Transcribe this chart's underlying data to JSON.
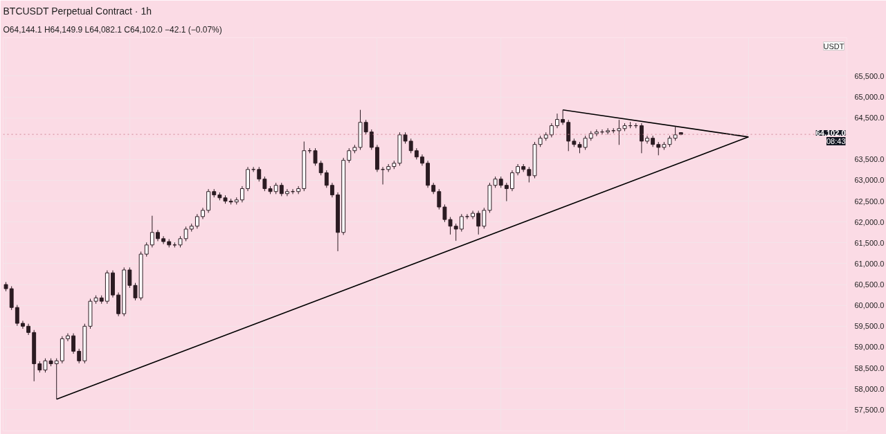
{
  "chart_data": {
    "type": "candlestick",
    "title": "BTCUSDT Perpetual Contract · 1h",
    "subtitle": "O64,144.1 H64,149.9 L64,082.1 C64,102.0 −42.1 (−0.07%)",
    "color": "#2b1b22",
    "categories": [
      null,
      null,
      null,
      null,
      null,
      null,
      null,
      null,
      null,
      null,
      null,
      null,
      null,
      null,
      null,
      null,
      null,
      null,
      null,
      null,
      null,
      null,
      null,
      null,
      null,
      null,
      null,
      null,
      null,
      null,
      null,
      null,
      null,
      null,
      null,
      null,
      null,
      null,
      null,
      null,
      null,
      null,
      null,
      null,
      null,
      null,
      null,
      null,
      null,
      null,
      null,
      null,
      null,
      null,
      null,
      null,
      null,
      null,
      null,
      null,
      null,
      null,
      null,
      null,
      null,
      null,
      null,
      null,
      null,
      null,
      null,
      null,
      null,
      null,
      null,
      null,
      null,
      null,
      null,
      null,
      null,
      null,
      null,
      null,
      null,
      null,
      null,
      null,
      null,
      null,
      null,
      null,
      null,
      null,
      null,
      null,
      null,
      null,
      null,
      null,
      null,
      null,
      null,
      null,
      null,
      null,
      null,
      null,
      null,
      null,
      null,
      null,
      null,
      null,
      null,
      null,
      null,
      null,
      null,
      null,
      null,
      null,
      null,
      null,
      null,
      null,
      null,
      null,
      null,
      null,
      null,
      null,
      null,
      null,
      null,
      null,
      null,
      null,
      null,
      null,
      null,
      null,
      null,
      null,
      null,
      null,
      null,
      null,
      null,
      null
    ],
    "ohlc": [
      [
        60500,
        60560,
        60340,
        60400
      ],
      [
        60400,
        60460,
        59890,
        59950
      ],
      [
        59950,
        60010,
        59510,
        59570
      ],
      [
        59570,
        59630,
        59440,
        59500
      ],
      [
        59500,
        59560,
        59290,
        59350
      ],
      [
        59350,
        59410,
        58180,
        58600
      ],
      [
        58600,
        58660,
        58390,
        58450
      ],
      [
        58450,
        58730,
        58390,
        58670
      ],
      [
        58670,
        58730,
        58540,
        58600
      ],
      [
        58600,
        58730,
        57750,
        58670
      ],
      [
        58670,
        59260,
        58610,
        59200
      ],
      [
        59200,
        59330,
        59140,
        59270
      ],
      [
        59270,
        59330,
        58840,
        58900
      ],
      [
        58900,
        58960,
        58610,
        58670
      ],
      [
        58670,
        59560,
        58610,
        59500
      ],
      [
        59500,
        60160,
        59440,
        60100
      ],
      [
        60100,
        60240,
        60040,
        60180
      ],
      [
        60180,
        60240,
        60040,
        60100
      ],
      [
        60100,
        60840,
        60040,
        60780
      ],
      [
        60780,
        60840,
        60190,
        60250
      ],
      [
        60250,
        60310,
        59740,
        59800
      ],
      [
        59800,
        60910,
        59740,
        60850
      ],
      [
        60850,
        60910,
        60420,
        60480
      ],
      [
        60480,
        60540,
        60120,
        60180
      ],
      [
        60180,
        61290,
        60120,
        61230
      ],
      [
        61230,
        61510,
        61170,
        61450
      ],
      [
        61450,
        62150,
        61390,
        61750
      ],
      [
        61750,
        61810,
        61540,
        61600
      ],
      [
        61600,
        61660,
        61470,
        61530
      ],
      [
        61530,
        61590,
        61390,
        61450
      ],
      [
        61450,
        61510,
        61390,
        61450
      ],
      [
        61450,
        61660,
        61390,
        61600
      ],
      [
        61600,
        61890,
        61540,
        61830
      ],
      [
        61830,
        61960,
        61770,
        61900
      ],
      [
        61900,
        62190,
        61840,
        62130
      ],
      [
        62130,
        62340,
        62070,
        62280
      ],
      [
        62280,
        62790,
        62220,
        62730
      ],
      [
        62730,
        62790,
        62590,
        62650
      ],
      [
        62650,
        62710,
        62520,
        62580
      ],
      [
        62580,
        62640,
        62440,
        62500
      ],
      [
        62500,
        62560,
        62420,
        62480
      ],
      [
        62480,
        62590,
        62420,
        62530
      ],
      [
        62530,
        62860,
        62470,
        62800
      ],
      [
        62800,
        63320,
        62740,
        63260
      ],
      [
        63260,
        63320,
        63200,
        63260
      ],
      [
        63260,
        63320,
        62970,
        63030
      ],
      [
        63030,
        63090,
        62740,
        62800
      ],
      [
        62800,
        62860,
        62670,
        62730
      ],
      [
        62730,
        62940,
        62670,
        62880
      ],
      [
        62880,
        62940,
        62620,
        62680
      ],
      [
        62680,
        62790,
        62620,
        62730
      ],
      [
        62730,
        62790,
        62670,
        62730
      ],
      [
        62730,
        62860,
        62670,
        62800
      ],
      [
        62800,
        63930,
        62740,
        63710
      ],
      [
        63710,
        63770,
        63650,
        63710
      ],
      [
        63710,
        63770,
        63350,
        63410
      ],
      [
        63410,
        63470,
        63120,
        63180
      ],
      [
        63180,
        63240,
        62820,
        62880
      ],
      [
        62880,
        62940,
        62590,
        62650
      ],
      [
        62650,
        62710,
        61300,
        61750
      ],
      [
        61750,
        63540,
        61690,
        63480
      ],
      [
        63480,
        63770,
        63420,
        63710
      ],
      [
        63710,
        63850,
        63650,
        63790
      ],
      [
        63790,
        64690,
        63730,
        64390
      ],
      [
        64390,
        64450,
        64100,
        64160
      ],
      [
        64160,
        64220,
        63730,
        63790
      ],
      [
        63790,
        63850,
        63200,
        63260
      ],
      [
        63260,
        63320,
        62900,
        63260
      ],
      [
        63260,
        63390,
        63200,
        63330
      ],
      [
        63330,
        63470,
        63270,
        63410
      ],
      [
        63410,
        64150,
        63350,
        64090
      ],
      [
        64090,
        64150,
        63880,
        63940
      ],
      [
        63940,
        64000,
        63650,
        63710
      ],
      [
        63710,
        63770,
        63500,
        63560
      ],
      [
        63560,
        63620,
        63350,
        63410
      ],
      [
        63410,
        63470,
        62820,
        62880
      ],
      [
        62880,
        62940,
        62670,
        62730
      ],
      [
        62730,
        62790,
        62300,
        62360
      ],
      [
        62360,
        62420,
        62000,
        62060
      ],
      [
        62060,
        62120,
        61700,
        61900
      ],
      [
        61900,
        61960,
        61550,
        61830
      ],
      [
        61830,
        62190,
        61770,
        62130
      ],
      [
        62130,
        62190,
        62070,
        62130
      ],
      [
        62130,
        62270,
        62070,
        62210
      ],
      [
        62210,
        62270,
        61700,
        61900
      ],
      [
        61900,
        62340,
        61840,
        62280
      ],
      [
        62280,
        62940,
        62220,
        62880
      ],
      [
        62880,
        63090,
        62820,
        63030
      ],
      [
        63030,
        63090,
        62820,
        62880
      ],
      [
        62880,
        62940,
        62500,
        62800
      ],
      [
        62800,
        63240,
        62740,
        63180
      ],
      [
        63180,
        63390,
        63120,
        63330
      ],
      [
        63330,
        63390,
        63200,
        63260
      ],
      [
        63260,
        63320,
        62950,
        63110
      ],
      [
        63110,
        63920,
        63050,
        63860
      ],
      [
        63860,
        64070,
        63800,
        64010
      ],
      [
        64010,
        64150,
        63950,
        64090
      ],
      [
        64090,
        64370,
        64030,
        64310
      ],
      [
        64310,
        64600,
        64250,
        64460
      ],
      [
        64460,
        64690,
        64330,
        64390
      ],
      [
        64390,
        64450,
        63700,
        63940
      ],
      [
        63940,
        64000,
        63800,
        63860
      ],
      [
        63860,
        63920,
        63650,
        63790
      ],
      [
        63790,
        64070,
        63730,
        64010
      ],
      [
        64010,
        64180,
        63950,
        64120
      ],
      [
        64120,
        64220,
        64060,
        64160
      ],
      [
        64160,
        64220,
        64100,
        64160
      ],
      [
        64160,
        64250,
        64100,
        64190
      ],
      [
        64190,
        64250,
        64130,
        64190
      ],
      [
        64190,
        64450,
        63850,
        64240
      ],
      [
        64240,
        64370,
        64180,
        64310
      ],
      [
        64310,
        64400,
        64250,
        64310
      ],
      [
        64310,
        64370,
        64250,
        64310
      ],
      [
        64310,
        64370,
        63650,
        63940
      ],
      [
        63940,
        64070,
        63880,
        64010
      ],
      [
        64010,
        64070,
        63800,
        63860
      ],
      [
        63860,
        63920,
        63600,
        63790
      ],
      [
        63790,
        63920,
        63730,
        63860
      ],
      [
        63860,
        64070,
        63800,
        64010
      ],
      [
        64010,
        64300,
        63950,
        64090
      ],
      [
        64144.1,
        64149.9,
        64082.1,
        64102.0
      ],
      null,
      null,
      null,
      null,
      null,
      null,
      null,
      null,
      null,
      null,
      null,
      null,
      null,
      null,
      null,
      null,
      null,
      null,
      null,
      null,
      null,
      null,
      null,
      null,
      null,
      null,
      null,
      null,
      null
    ],
    "series": [
      {
        "type": "line",
        "values": [
          null,
          null,
          null,
          null,
          null,
          null,
          null,
          null,
          null,
          57750,
          null,
          null,
          null,
          null,
          null,
          null,
          null,
          null,
          null,
          null,
          null,
          null,
          null,
          null,
          null,
          null,
          null,
          null,
          null,
          null,
          null,
          null,
          null,
          null,
          null,
          null,
          null,
          null,
          null,
          null,
          null,
          null,
          null,
          null,
          null,
          null,
          null,
          null,
          null,
          null,
          null,
          null,
          null,
          null,
          null,
          null,
          null,
          null,
          null,
          null,
          null,
          null,
          null,
          null,
          null,
          null,
          null,
          null,
          null,
          null,
          null,
          null,
          null,
          null,
          null,
          null,
          null,
          null,
          null,
          null,
          null,
          null,
          null,
          null,
          null,
          null,
          null,
          null,
          null,
          null,
          null,
          null,
          null,
          null,
          null,
          null,
          null,
          null,
          null,
          null,
          null,
          null,
          null,
          null,
          null,
          null,
          null,
          null,
          null,
          null,
          null,
          null,
          null,
          null,
          null,
          null,
          null,
          null,
          null,
          null,
          null,
          null,
          null,
          null,
          null,
          null,
          null,
          null,
          null,
          null,
          null,
          null,
          64040,
          null,
          null,
          null,
          null,
          null,
          null,
          null,
          null,
          null,
          null,
          null,
          null,
          null,
          null,
          null,
          null,
          null
        ],
        "color": "#000000"
      },
      {
        "type": "line",
        "values": [
          null,
          null,
          null,
          null,
          null,
          null,
          null,
          null,
          null,
          null,
          null,
          null,
          null,
          null,
          null,
          null,
          null,
          null,
          null,
          null,
          null,
          null,
          null,
          null,
          null,
          null,
          null,
          null,
          null,
          null,
          null,
          null,
          null,
          null,
          null,
          null,
          null,
          null,
          null,
          null,
          null,
          null,
          null,
          null,
          null,
          null,
          null,
          null,
          null,
          null,
          null,
          null,
          null,
          null,
          null,
          null,
          null,
          null,
          null,
          null,
          null,
          null,
          null,
          null,
          null,
          null,
          null,
          null,
          null,
          null,
          null,
          null,
          null,
          null,
          null,
          null,
          null,
          null,
          null,
          null,
          null,
          null,
          null,
          null,
          null,
          null,
          null,
          null,
          null,
          null,
          null,
          null,
          null,
          null,
          null,
          null,
          null,
          null,
          null,
          64690,
          null,
          null,
          null,
          null,
          null,
          null,
          null,
          null,
          null,
          null,
          null,
          null,
          null,
          null,
          null,
          null,
          null,
          null,
          null,
          null,
          null,
          null,
          null,
          null,
          null,
          null,
          null,
          null,
          null,
          null,
          null,
          null,
          64040,
          null,
          null,
          null,
          null,
          null,
          null,
          null,
          null,
          null,
          null,
          null,
          null,
          null,
          null,
          null,
          null,
          null
        ],
        "color": "#000000"
      }
    ],
    "ylim": [
      56990,
      66420
    ],
    "yticks": [
      {
        "value": 57500,
        "label": "57,500.0"
      },
      {
        "value": 58000,
        "label": "58,000.0"
      },
      {
        "value": 58500,
        "label": "58,500.0"
      },
      {
        "value": 59000,
        "label": "59,000.0"
      },
      {
        "value": 59500,
        "label": "59,500.0"
      },
      {
        "value": 60000,
        "label": "60,000.0"
      },
      {
        "value": 60500,
        "label": "60,500.0"
      },
      {
        "value": 61000,
        "label": "61,000.0"
      },
      {
        "value": 61500,
        "label": "61,500.0"
      },
      {
        "value": 62000,
        "label": "62,000.0"
      },
      {
        "value": 62500,
        "label": "62,500.0"
      },
      {
        "value": 63000,
        "label": "63,000.0"
      },
      {
        "value": 63500,
        "label": "63,500.0"
      },
      {
        "value": 64000,
        "label": null
      },
      {
        "value": 64500,
        "label": "64,500.0"
      },
      {
        "value": 65000,
        "label": "65,000.0"
      },
      {
        "value": 65500,
        "label": "65,500.0"
      }
    ],
    "ref_lines": [
      {
        "axis": "y",
        "value": 64102.0,
        "label": "64,102.0",
        "color": "#d08898",
        "line_style": "dotted"
      }
    ],
    "annotations": [
      {
        "text": "08:43",
        "y": 64102.0
      },
      "USDT"
    ],
    "grid": true,
    "tick_labels": "y",
    "marker": "none",
    "line_style": "solid"
  }
}
